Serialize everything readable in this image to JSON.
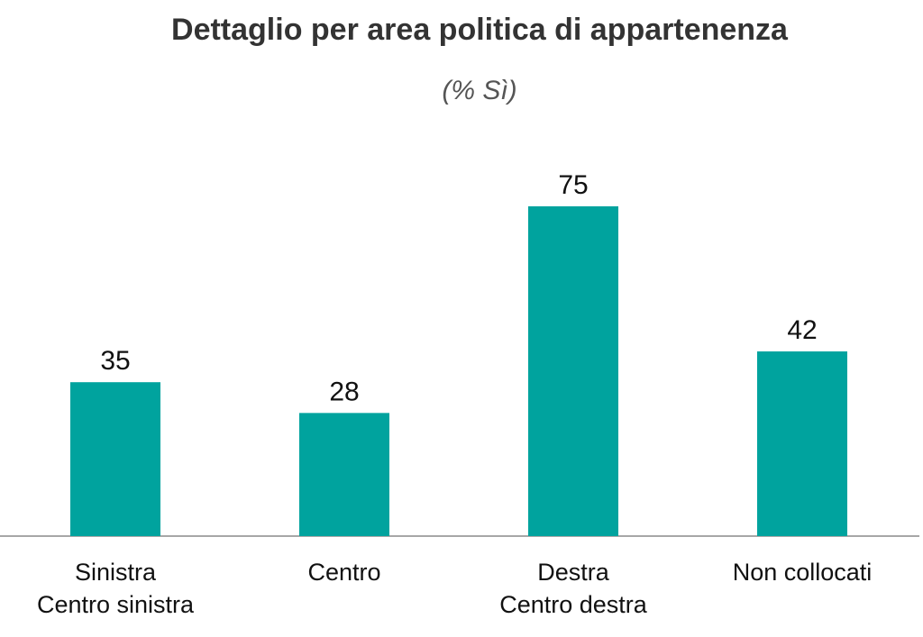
{
  "title": "Dettaglio per area politica di appartenenza",
  "subtitle": "(% Sì)",
  "colors": {
    "bar": "#00A39E",
    "axis": "#8a8a8a"
  },
  "chart_data": {
    "type": "bar",
    "title": "Dettaglio per area politica di appartenenza",
    "subtitle": "(% Sì)",
    "categories": [
      [
        "Sinistra",
        "Centro sinistra"
      ],
      [
        "Centro"
      ],
      [
        "Destra",
        "Centro destra"
      ],
      [
        "Non collocati"
      ]
    ],
    "values": [
      35,
      28,
      75,
      42
    ],
    "data_labels": [
      "35",
      "28",
      "75",
      "42"
    ],
    "ylim": [
      0,
      100
    ],
    "grid": false,
    "legend": "none"
  }
}
